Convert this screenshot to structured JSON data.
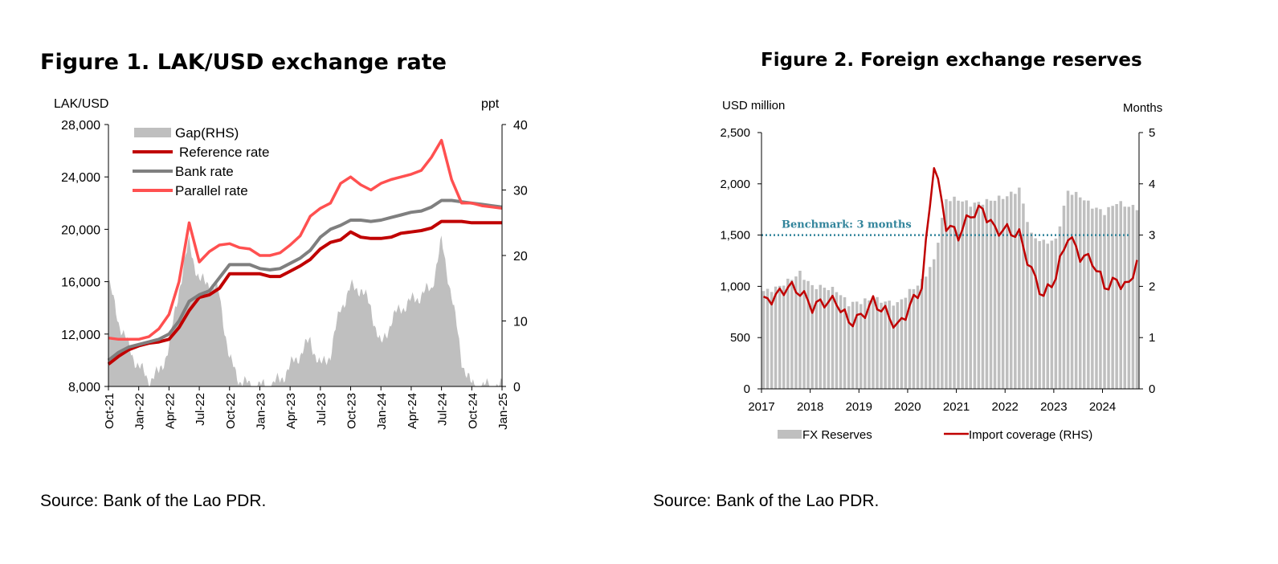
{
  "figures": [
    {
      "title": "Figure 1. LAK/USD exchange rate",
      "source": "Source: Bank of the Lao PDR."
    },
    {
      "title": "Figure 2. Foreign exchange reserves",
      "source": "Source: Bank of the Lao PDR."
    }
  ],
  "chart_data": [
    {
      "type": "line",
      "title": "Figure 1. LAK/USD exchange rate",
      "ylabel": "LAK/USD",
      "y2label": "ppt",
      "ylim": [
        8000,
        28000
      ],
      "y2lim": [
        0,
        40
      ],
      "yticks": [
        "8,000",
        "12,000",
        "16,000",
        "20,000",
        "24,000",
        "28,000"
      ],
      "y2ticks": [
        "0",
        "10",
        "20",
        "30",
        "40"
      ],
      "xlim": [
        "2021-10",
        "2025-01"
      ],
      "xticks": [
        "Oct-21",
        "Jan-22",
        "Apr-22",
        "Jul-22",
        "Oct-22",
        "Jan-23",
        "Apr-23",
        "Jul-23",
        "Oct-23",
        "Jan-24",
        "Apr-24",
        "Jul-24",
        "Oct-24",
        "Jan-25"
      ],
      "grid": false,
      "legend_position": "top-left",
      "series": [
        {
          "name": "Gap(RHS)",
          "kind": "area",
          "axis": "right",
          "color": "#bfbfbf",
          "x": [
            "2021-10",
            "2021-11",
            "2021-12",
            "2022-01",
            "2022-02",
            "2022-03",
            "2022-04",
            "2022-05",
            "2022-06",
            "2022-07",
            "2022-08",
            "2022-09",
            "2022-10",
            "2022-11",
            "2022-12",
            "2023-01",
            "2023-02",
            "2023-03",
            "2023-04",
            "2023-05",
            "2023-06",
            "2023-07",
            "2023-08",
            "2023-09",
            "2023-10",
            "2023-11",
            "2023-12",
            "2024-01",
            "2024-02",
            "2024-03",
            "2024-04",
            "2024-05",
            "2024-06",
            "2024-07",
            "2024-08",
            "2024-09",
            "2024-10",
            "2024-11",
            "2024-12",
            "2025-01"
          ],
          "values": [
            16,
            10,
            6,
            3,
            1,
            2,
            6,
            15,
            22,
            16,
            16,
            14,
            4,
            1,
            0,
            0,
            0,
            1,
            3,
            5,
            7,
            3,
            5,
            12,
            15,
            15,
            12,
            6,
            10,
            12,
            13,
            14,
            15,
            22,
            14,
            4,
            0,
            0,
            0,
            0
          ]
        },
        {
          "name": "Reference rate",
          "kind": "line",
          "axis": "left",
          "color": "#c00000",
          "x": [
            "2021-10",
            "2021-11",
            "2021-12",
            "2022-01",
            "2022-02",
            "2022-03",
            "2022-04",
            "2022-05",
            "2022-06",
            "2022-07",
            "2022-08",
            "2022-09",
            "2022-10",
            "2022-11",
            "2022-12",
            "2023-01",
            "2023-02",
            "2023-03",
            "2023-04",
            "2023-05",
            "2023-06",
            "2023-07",
            "2023-08",
            "2023-09",
            "2023-10",
            "2023-11",
            "2023-12",
            "2024-01",
            "2024-02",
            "2024-03",
            "2024-04",
            "2024-05",
            "2024-06",
            "2024-07",
            "2024-08",
            "2024-09",
            "2024-10",
            "2024-11",
            "2024-12",
            "2025-01"
          ],
          "values": [
            9700,
            10300,
            10800,
            11100,
            11300,
            11400,
            11600,
            12500,
            13800,
            14800,
            15000,
            15500,
            16600,
            16600,
            16600,
            16600,
            16400,
            16400,
            16800,
            17200,
            17700,
            18500,
            19000,
            19200,
            19800,
            19400,
            19300,
            19300,
            19400,
            19700,
            19800,
            19900,
            20100,
            20600,
            20600,
            20600,
            20500,
            20500,
            20500,
            20500
          ]
        },
        {
          "name": "Bank rate",
          "kind": "line",
          "axis": "left",
          "color": "#7f7f7f",
          "x": [
            "2021-10",
            "2021-11",
            "2021-12",
            "2022-01",
            "2022-02",
            "2022-03",
            "2022-04",
            "2022-05",
            "2022-06",
            "2022-07",
            "2022-08",
            "2022-09",
            "2022-10",
            "2022-11",
            "2022-12",
            "2023-01",
            "2023-02",
            "2023-03",
            "2023-04",
            "2023-05",
            "2023-06",
            "2023-07",
            "2023-08",
            "2023-09",
            "2023-10",
            "2023-11",
            "2023-12",
            "2024-01",
            "2024-02",
            "2024-03",
            "2024-04",
            "2024-05",
            "2024-06",
            "2024-07",
            "2024-08",
            "2024-09",
            "2024-10",
            "2024-11",
            "2024-12",
            "2025-01"
          ],
          "values": [
            10000,
            10600,
            11000,
            11200,
            11400,
            11600,
            12000,
            13000,
            14500,
            15000,
            15300,
            16300,
            17300,
            17300,
            17300,
            17000,
            16900,
            17000,
            17400,
            17800,
            18400,
            19400,
            20000,
            20300,
            20700,
            20700,
            20600,
            20700,
            20900,
            21100,
            21300,
            21400,
            21700,
            22200,
            22200,
            22100,
            22000,
            21900,
            21800,
            21700
          ]
        },
        {
          "name": "Parallel rate",
          "kind": "line",
          "axis": "left",
          "color": "#ff5050",
          "x": [
            "2021-10",
            "2021-11",
            "2021-12",
            "2022-01",
            "2022-02",
            "2022-03",
            "2022-04",
            "2022-05",
            "2022-06",
            "2022-07",
            "2022-08",
            "2022-09",
            "2022-10",
            "2022-11",
            "2022-12",
            "2023-01",
            "2023-02",
            "2023-03",
            "2023-04",
            "2023-05",
            "2023-06",
            "2023-07",
            "2023-08",
            "2023-09",
            "2023-10",
            "2023-11",
            "2023-12",
            "2024-01",
            "2024-02",
            "2024-03",
            "2024-04",
            "2024-05",
            "2024-06",
            "2024-07",
            "2024-08",
            "2024-09",
            "2024-10",
            "2024-11",
            "2024-12",
            "2025-01"
          ],
          "values": [
            11700,
            11600,
            11600,
            11600,
            11800,
            12400,
            13500,
            16000,
            20500,
            17500,
            18300,
            18800,
            18900,
            18600,
            18500,
            18000,
            18000,
            18200,
            18800,
            19500,
            21000,
            21600,
            22000,
            23500,
            24000,
            23400,
            23000,
            23500,
            23800,
            24000,
            24200,
            24500,
            25500,
            26800,
            23800,
            22000,
            22000,
            21800,
            21700,
            21600
          ]
        }
      ]
    },
    {
      "type": "bar",
      "title": "Figure 2. Foreign exchange reserves",
      "ylabel": "USD million",
      "y2label": "Months",
      "ylim": [
        0,
        2500
      ],
      "y2lim": [
        0,
        5
      ],
      "yticks": [
        "0",
        "500",
        "1,000",
        "1,500",
        "2,000",
        "2,500"
      ],
      "y2ticks": [
        "0",
        "1",
        "2",
        "3",
        "4",
        "5"
      ],
      "xlim": [
        "2017-01",
        "2024-09"
      ],
      "xticks": [
        "2017",
        "2018",
        "2019",
        "2020",
        "2021",
        "2022",
        "2023",
        "2024"
      ],
      "grid": false,
      "legend_position": "bottom",
      "benchmark": {
        "label": "Benchmark: 3 months",
        "value": 3,
        "axis": "right",
        "color": "#31849b"
      },
      "series": [
        {
          "name": "FX Reserves",
          "kind": "bar",
          "axis": "left",
          "color": "#bfbfbf",
          "x": [
            "2017-01",
            "2017-04",
            "2017-07",
            "2017-10",
            "2018-01",
            "2018-04",
            "2018-07",
            "2018-10",
            "2019-01",
            "2019-04",
            "2019-07",
            "2019-10",
            "2020-01",
            "2020-04",
            "2020-07",
            "2020-10",
            "2021-01",
            "2021-04",
            "2021-07",
            "2021-10",
            "2022-01",
            "2022-04",
            "2022-07",
            "2022-10",
            "2023-01",
            "2023-04",
            "2023-07",
            "2023-10",
            "2024-01",
            "2024-04",
            "2024-07",
            "2024-09"
          ],
          "values": [
            950,
            980,
            1050,
            1130,
            1000,
            990,
            960,
            830,
            850,
            880,
            850,
            830,
            950,
            1050,
            1250,
            1850,
            1850,
            1800,
            1820,
            1850,
            1880,
            1950,
            1500,
            1430,
            1450,
            1930,
            1880,
            1780,
            1720,
            1820,
            1780,
            1760
          ]
        },
        {
          "name": "Import coverage (RHS)",
          "kind": "line",
          "axis": "right",
          "color": "#c00000",
          "x": [
            "2017-01",
            "2017-04",
            "2017-07",
            "2017-10",
            "2018-01",
            "2018-04",
            "2018-07",
            "2018-10",
            "2019-01",
            "2019-04",
            "2019-07",
            "2019-10",
            "2020-01",
            "2020-04",
            "2020-07",
            "2020-10",
            "2021-01",
            "2021-04",
            "2021-07",
            "2021-10",
            "2022-01",
            "2022-04",
            "2022-07",
            "2022-10",
            "2023-01",
            "2023-04",
            "2023-07",
            "2023-10",
            "2024-01",
            "2024-04",
            "2024-07",
            "2024-09"
          ],
          "values": [
            1.7,
            1.8,
            2.0,
            1.9,
            1.6,
            1.7,
            1.7,
            1.3,
            1.4,
            1.7,
            1.5,
            1.2,
            1.6,
            2.0,
            4.4,
            3.2,
            3.0,
            3.4,
            3.5,
            3.1,
            3.1,
            3.0,
            2.3,
            1.8,
            2.2,
            3.0,
            2.6,
            2.5,
            2.0,
            2.1,
            2.0,
            2.8
          ]
        }
      ]
    }
  ]
}
